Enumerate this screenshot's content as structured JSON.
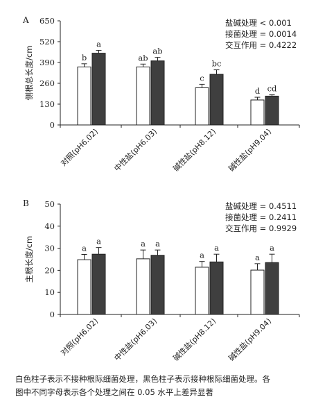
{
  "chart_data": [
    {
      "type": "bar",
      "panel_label": "A",
      "categories": [
        "对照(pH6.02)",
        "中性盐(pH6.03)",
        "碱性盐(pH8.12)",
        "碱性盐(pH9.04)"
      ],
      "series": [
        {
          "values": [
            362,
            362,
            232,
            156
          ],
          "errors": [
            20,
            18,
            22,
            17
          ],
          "letters": [
            "b",
            "ab",
            "c",
            "d"
          ],
          "color": "#ffffff"
        },
        {
          "values": [
            448,
            400,
            316,
            180
          ],
          "errors": [
            18,
            22,
            28,
            8
          ],
          "letters": [
            "a",
            "ab",
            "bc",
            "cd"
          ],
          "color": "#3f3f3f"
        }
      ],
      "ylabel": "侧根总长度/cm",
      "ylim": [
        0,
        650
      ],
      "yticks": [
        0,
        130,
        260,
        390,
        520,
        650
      ],
      "stats": [
        "盐碱处理 < 0.001",
        "接菌处理 = 0.0014",
        "交互作用 = 0.4222"
      ]
    },
    {
      "type": "bar",
      "panel_label": "B",
      "categories": [
        "对照(pH6.02)",
        "中性盐(pH6.03)",
        "碱性盐(pH8.12)",
        "碱性盐(pH9.04)"
      ],
      "series": [
        {
          "values": [
            24.8,
            25.2,
            21.4,
            20.1
          ],
          "errors": [
            2.4,
            4.0,
            2.6,
            2.9
          ],
          "letters": [
            "a",
            "a",
            "a",
            "a"
          ],
          "color": "#ffffff"
        },
        {
          "values": [
            27.3,
            26.8,
            23.8,
            23.5
          ],
          "errors": [
            3.0,
            2.4,
            3.5,
            3.8
          ],
          "letters": [
            "a",
            "a",
            "a",
            "a"
          ],
          "color": "#3f3f3f"
        }
      ],
      "ylabel": "主根长度/cm",
      "ylim": [
        0,
        50
      ],
      "yticks": [
        0,
        10,
        20,
        30,
        40,
        50
      ],
      "stats": [
        "盐碱处理 = 0.4511",
        "接菌处理 = 0.2411",
        "交互作用 = 0.9929"
      ]
    }
  ],
  "caption": {
    "line1": "白色柱子表示不接种根际细菌处理，黑色柱子表示接种根际细菌处理。各",
    "line2": "图中不同字母表示各个处理之间在 0.05 水平上差异显著"
  }
}
